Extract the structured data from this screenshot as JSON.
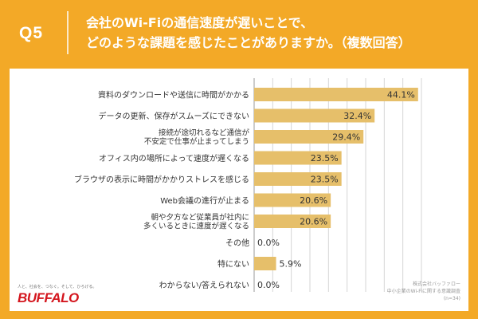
{
  "header": {
    "q_label": "Q5",
    "question_line1": "会社のWi-Fiの通信速度が遅いことで、",
    "question_line2": "どのような課題を感じたことがありますか。（複数回答）"
  },
  "colors": {
    "background": "#f3a927",
    "bar": "#e6bf6a",
    "grid": "#d6d6d6",
    "text": "#333333",
    "brand": "#d4161e"
  },
  "chart_data": {
    "type": "bar",
    "orientation": "horizontal",
    "categories": [
      [
        "資料のダウンロードや送信に時間がかかる"
      ],
      [
        "データの更新、保存がスムーズにできない"
      ],
      [
        "接続が途切れるなど通信が",
        "不安定で仕事が止まってしまう"
      ],
      [
        "オフィス内の場所によって速度が遅くなる"
      ],
      [
        "ブラウザの表示に時間がかかりストレスを感じる"
      ],
      [
        "Web会議の進行が止まる"
      ],
      [
        "朝や夕方など従業員が社内に",
        "多くいるときに速度が遅くなる"
      ],
      [
        "その他"
      ],
      [
        "特にない"
      ],
      [
        "わからない/答えられない"
      ]
    ],
    "values": [
      44.1,
      32.4,
      29.4,
      23.5,
      23.5,
      20.6,
      20.6,
      0.0,
      5.9,
      0.0
    ],
    "value_labels": [
      "44.1%",
      "32.4%",
      "29.4%",
      "23.5%",
      "23.5%",
      "20.6%",
      "20.6%",
      "0.0%",
      "5.9%",
      "0.0%"
    ],
    "xlim": [
      0,
      45
    ],
    "grid": true
  },
  "footer": {
    "brand_tagline": "人と、社会を、つなぐ。そして、ひろげる。",
    "brand_name": "BUFFALO",
    "source_line1": "株式会社バッファロー",
    "source_line2": "中小企業のWi-Fiに関する意識調査",
    "source_line3": "(n=34)"
  }
}
